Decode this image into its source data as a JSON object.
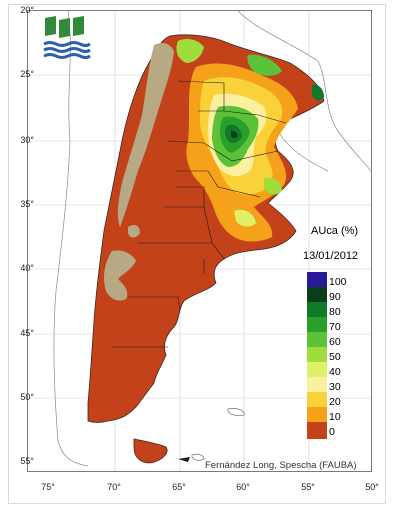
{
  "map": {
    "title": "AUca (%)",
    "date": "13/01/2012",
    "credit": "Fernández Long, Spescha (FAUBA)"
  },
  "latitude_labels": [
    "20°",
    "25°",
    "30°",
    "35°",
    "40°",
    "45°",
    "50°",
    "55°"
  ],
  "longitude_labels": [
    "75°",
    "70°",
    "65°",
    "60°",
    "55°",
    "50°"
  ],
  "legend": {
    "items": [
      {
        "label": "100",
        "color": "#2a1a9a"
      },
      {
        "label": "90",
        "color": "#0a3d1a"
      },
      {
        "label": "80",
        "color": "#107a2a"
      },
      {
        "label": "70",
        "color": "#2aa02a"
      },
      {
        "label": "60",
        "color": "#5bc23a"
      },
      {
        "label": "50",
        "color": "#9fdc3c"
      },
      {
        "label": "40",
        "color": "#dff06a"
      },
      {
        "label": "30",
        "color": "#fbf0a0"
      },
      {
        "label": "20",
        "color": "#f9d23a"
      },
      {
        "label": "10",
        "color": "#f5a21a"
      },
      {
        "label": "0",
        "color": "#c4421a"
      }
    ]
  },
  "colors": {
    "dry_red": "#c4421a",
    "mountain_tan": "#b8a985",
    "logo_green": "#2f8a3a",
    "logo_blue": "#2b5fb0"
  }
}
